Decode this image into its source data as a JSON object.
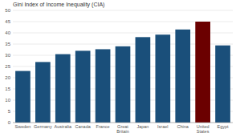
{
  "chart_data": {
    "type": "bar",
    "title": "Gini Index of Income Inequality (CIA)",
    "categories": [
      "Sweden",
      "Germany",
      "Australia",
      "Canada",
      "France",
      "Great\nBritain",
      "Japan",
      "Israel",
      "China",
      "United\nStates",
      "Egypt"
    ],
    "values": [
      23,
      27,
      30.5,
      32,
      32.7,
      34,
      38.1,
      39.2,
      41.5,
      45,
      34.4
    ],
    "colors": [
      "#1a4f7a",
      "#1a4f7a",
      "#1a4f7a",
      "#1a4f7a",
      "#1a4f7a",
      "#1a4f7a",
      "#1a4f7a",
      "#1a4f7a",
      "#1a4f7a",
      "#6b0000",
      "#1a4f7a"
    ],
    "ylim": [
      0,
      50
    ],
    "yticks": [
      0,
      5,
      10,
      15,
      20,
      25,
      30,
      35,
      40,
      45,
      50
    ],
    "grid": true
  }
}
